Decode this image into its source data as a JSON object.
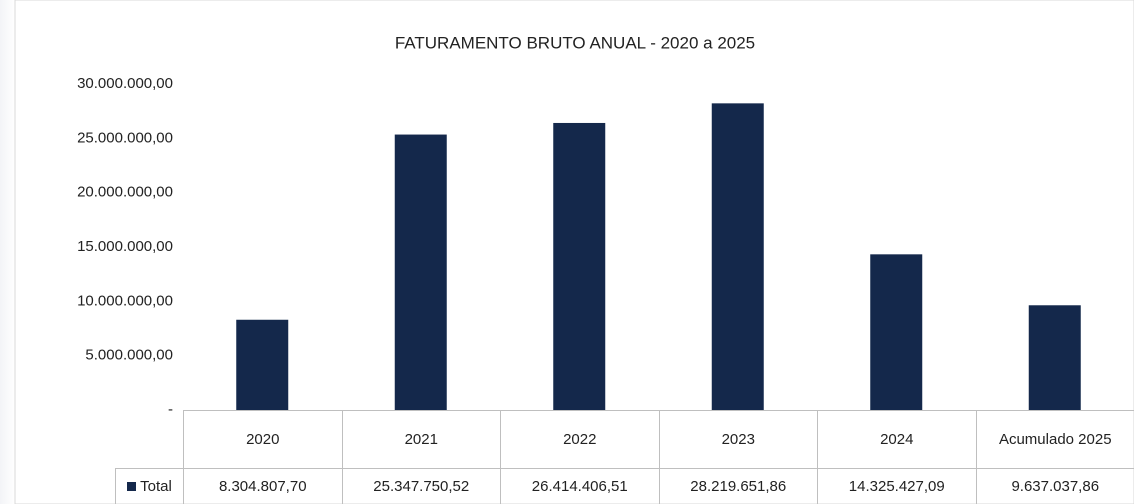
{
  "chart_data": {
    "type": "bar",
    "title": "FATURAMENTO BRUTO ANUAL - 2020 a 2025",
    "categories": [
      "2020",
      "2021",
      "2022",
      "2023",
      "2024",
      "Acumulado 2025"
    ],
    "series": [
      {
        "name": "Total",
        "color": "#14284b",
        "values": [
          8304807.7,
          25347750.52,
          26414406.51,
          28219651.86,
          14325427.09,
          9637037.86
        ],
        "value_labels": [
          "8.304.807,70",
          "25.347.750,52",
          "26.414.406,51",
          "28.219.651,86",
          "14.325.427,09",
          "9.637.037,86"
        ]
      }
    ],
    "ylim": [
      0,
      30000000
    ],
    "yticks": [
      {
        "value": 0,
        "label": "-"
      },
      {
        "value": 5000000,
        "label": "5.000.000,00"
      },
      {
        "value": 10000000,
        "label": "10.000.000,00"
      },
      {
        "value": 15000000,
        "label": "15.000.000,00"
      },
      {
        "value": 20000000,
        "label": "20.000.000,00"
      },
      {
        "value": 25000000,
        "label": "25.000.000,00"
      },
      {
        "value": 30000000,
        "label": "30.000.000,00"
      }
    ],
    "grid": false
  }
}
